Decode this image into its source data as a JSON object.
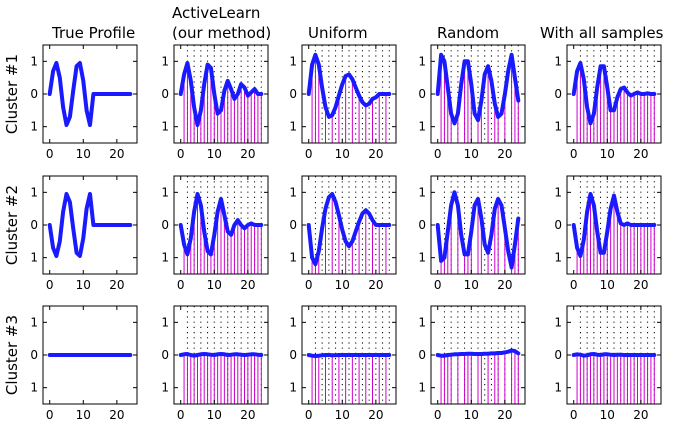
{
  "colors": {
    "curve": "#1a1aff",
    "stem": "#cc00cc",
    "dotted_grid": "#000000",
    "background": "#ffffff"
  },
  "column_titles": [
    [
      "True Profile"
    ],
    [
      "ActiveLearn",
      "(our method)"
    ],
    [
      "Uniform"
    ],
    [
      "Random"
    ],
    [
      "With all samples"
    ]
  ],
  "row_titles": [
    "Cluster #1",
    "Cluster #2",
    "Cluster #3"
  ],
  "chart_data": {
    "type": "line",
    "layout": "grid 3 rows x 5 columns",
    "xlim": [
      -2,
      26
    ],
    "ylim": [
      -1.5,
      1.5
    ],
    "xticks": [
      0,
      10,
      20
    ],
    "yticks": [
      1,
      0,
      -1
    ],
    "ytick_labels": [
      "1",
      "0",
      "1"
    ],
    "stem_style": "vertical lines from the bottom of the axes to each sampled value",
    "panels": [
      {
        "row": 0,
        "col": 0,
        "name": "Cluster #1 - True Profile",
        "x": [
          0,
          1,
          2,
          3,
          4,
          5,
          6,
          7,
          8,
          9,
          10,
          11,
          12,
          13,
          14,
          15,
          16,
          17,
          18,
          19,
          20,
          21,
          22,
          23,
          24
        ],
        "y": [
          0,
          0.7,
          0.95,
          0.5,
          -0.4,
          -0.95,
          -0.7,
          0.1,
          0.85,
          0.95,
          0.4,
          -0.5,
          -0.95,
          0,
          0,
          0,
          0,
          0,
          0,
          0,
          0,
          0,
          0,
          0,
          0
        ],
        "samples_x": [],
        "grid_x": []
      },
      {
        "row": 0,
        "col": 1,
        "name": "Cluster #1 - ActiveLearn (our method)",
        "x": [
          0,
          1,
          2,
          3,
          4,
          5,
          6,
          7,
          8,
          9,
          10,
          11,
          12,
          13,
          14,
          15,
          16,
          17,
          18,
          19,
          20,
          21,
          22,
          23,
          24
        ],
        "y": [
          0,
          0.6,
          0.95,
          0.4,
          -0.4,
          -0.95,
          -0.5,
          0.3,
          0.9,
          0.8,
          0,
          -0.6,
          -0.5,
          0.1,
          0.4,
          0.15,
          -0.15,
          0,
          0.3,
          0.2,
          -0.05,
          0.05,
          0.15,
          0,
          0
        ],
        "samples_x": [
          1,
          2,
          3,
          4,
          5,
          6,
          7,
          8,
          9,
          10,
          11,
          12,
          13,
          14,
          15,
          16,
          17,
          18,
          19,
          20,
          21,
          22,
          23,
          24
        ],
        "grid_x": [
          2,
          4,
          6,
          8,
          10,
          12,
          14,
          16,
          18,
          20,
          22,
          24
        ]
      },
      {
        "row": 0,
        "col": 2,
        "name": "Cluster #1 - Uniform",
        "x": [
          0,
          1,
          2,
          3,
          4,
          5,
          6,
          7,
          8,
          9,
          10,
          11,
          12,
          13,
          14,
          15,
          16,
          17,
          18,
          19,
          20,
          21,
          22,
          23,
          24
        ],
        "y": [
          0,
          0.9,
          1.2,
          0.9,
          0.2,
          -0.4,
          -0.7,
          -0.65,
          -0.4,
          -0.05,
          0.3,
          0.55,
          0.6,
          0.45,
          0.2,
          -0.05,
          -0.25,
          -0.35,
          -0.3,
          -0.15,
          -0.1,
          0,
          0,
          0,
          0
        ],
        "samples_x": [
          1,
          2,
          3,
          5,
          7,
          9,
          11,
          13,
          15,
          17,
          19,
          21,
          23
        ],
        "grid_x": [
          2,
          4,
          6,
          8,
          10,
          12,
          14,
          16,
          18,
          20,
          22,
          24
        ]
      },
      {
        "row": 0,
        "col": 3,
        "name": "Cluster #1 - Random",
        "x": [
          0,
          1,
          2,
          3,
          4,
          5,
          6,
          7,
          8,
          9,
          10,
          11,
          12,
          13,
          14,
          15,
          16,
          17,
          18,
          19,
          20,
          21,
          22,
          23,
          24
        ],
        "y": [
          0,
          1.2,
          1.0,
          0.2,
          -0.6,
          -0.9,
          -0.6,
          0.3,
          1.0,
          1.0,
          0.3,
          -0.6,
          -0.8,
          -0.2,
          0.6,
          0.85,
          0.4,
          -0.3,
          -0.7,
          -0.6,
          0,
          0.7,
          1.2,
          0.5,
          -0.2
        ],
        "samples_x": [
          1,
          2,
          3,
          4,
          6,
          8,
          9,
          10,
          12,
          13,
          15,
          17,
          18,
          20,
          22,
          23,
          24
        ],
        "grid_x": [
          2,
          4,
          6,
          8,
          10,
          12,
          14,
          16,
          18,
          20,
          22,
          24
        ]
      },
      {
        "row": 0,
        "col": 4,
        "name": "Cluster #1 - With all samples",
        "x": [
          0,
          1,
          2,
          3,
          4,
          5,
          6,
          7,
          8,
          9,
          10,
          11,
          12,
          13,
          14,
          15,
          16,
          17,
          18,
          19,
          20,
          21,
          22,
          23,
          24
        ],
        "y": [
          0,
          0.7,
          0.95,
          0.45,
          -0.4,
          -0.9,
          -0.6,
          0.2,
          0.85,
          0.85,
          0.2,
          -0.5,
          -0.5,
          -0.1,
          0.15,
          0.2,
          0.05,
          -0.05,
          0,
          0.05,
          0,
          0,
          0.02,
          0,
          0
        ],
        "samples_x": [
          1,
          2,
          3,
          4,
          5,
          6,
          7,
          8,
          9,
          10,
          11,
          12,
          13,
          14,
          15,
          16,
          17,
          18,
          19,
          20,
          21,
          22,
          23,
          24
        ],
        "grid_x": [
          2,
          4,
          6,
          8,
          10,
          12,
          14,
          16,
          18,
          20,
          22,
          24
        ]
      },
      {
        "row": 1,
        "col": 0,
        "name": "Cluster #2 - True Profile",
        "x": [
          0,
          1,
          2,
          3,
          4,
          5,
          6,
          7,
          8,
          9,
          10,
          11,
          12,
          13,
          14,
          15,
          16,
          17,
          18,
          19,
          20,
          21,
          22,
          23,
          24
        ],
        "y": [
          0,
          -0.7,
          -0.95,
          -0.5,
          0.4,
          0.95,
          0.7,
          -0.1,
          -0.85,
          -0.95,
          -0.4,
          0.5,
          0.95,
          0,
          0,
          0,
          0,
          0,
          0,
          0,
          0,
          0,
          0,
          0,
          0
        ],
        "samples_x": [],
        "grid_x": []
      },
      {
        "row": 1,
        "col": 1,
        "name": "Cluster #2 - ActiveLearn (our method)",
        "x": [
          0,
          1,
          2,
          3,
          4,
          5,
          6,
          7,
          8,
          9,
          10,
          11,
          12,
          13,
          14,
          15,
          16,
          17,
          18,
          19,
          20,
          21,
          22,
          23,
          24
        ],
        "y": [
          0,
          -0.6,
          -0.9,
          -0.4,
          0.4,
          0.95,
          0.6,
          -0.2,
          -0.8,
          -0.9,
          -0.3,
          0.4,
          0.8,
          0.3,
          -0.2,
          -0.3,
          0,
          0.15,
          0,
          -0.1,
          0,
          0.05,
          0,
          0,
          0
        ],
        "samples_x": [
          1,
          2,
          3,
          4,
          5,
          6,
          7,
          8,
          9,
          10,
          11,
          12,
          13,
          14,
          15,
          16,
          17,
          18,
          19,
          20,
          21,
          22,
          23,
          24
        ],
        "grid_x": [
          2,
          4,
          6,
          8,
          10,
          12,
          14,
          16,
          18,
          20,
          22,
          24
        ]
      },
      {
        "row": 1,
        "col": 2,
        "name": "Cluster #2 - Uniform",
        "x": [
          0,
          1,
          2,
          3,
          4,
          5,
          6,
          7,
          8,
          9,
          10,
          11,
          12,
          13,
          14,
          15,
          16,
          17,
          18,
          19,
          20,
          21,
          22,
          23,
          24
        ],
        "y": [
          0,
          -1.0,
          -1.2,
          -0.8,
          -0.1,
          0.5,
          0.85,
          0.95,
          0.7,
          0.3,
          -0.15,
          -0.5,
          -0.65,
          -0.5,
          -0.2,
          0.1,
          0.35,
          0.45,
          0.35,
          0.15,
          0,
          0,
          0,
          0,
          0
        ],
        "samples_x": [
          1,
          2,
          3,
          5,
          7,
          9,
          11,
          13,
          15,
          17,
          19,
          21,
          23
        ],
        "grid_x": [
          2,
          4,
          6,
          8,
          10,
          12,
          14,
          16,
          18,
          20,
          22,
          24
        ]
      },
      {
        "row": 1,
        "col": 3,
        "name": "Cluster #2 - Random",
        "x": [
          0,
          1,
          2,
          3,
          4,
          5,
          6,
          7,
          8,
          9,
          10,
          11,
          12,
          13,
          14,
          15,
          16,
          17,
          18,
          19,
          20,
          21,
          22,
          23,
          24
        ],
        "y": [
          0,
          -1.1,
          -1.0,
          -0.2,
          0.6,
          1.0,
          0.6,
          -0.3,
          -0.9,
          -0.9,
          -0.2,
          0.6,
          0.8,
          0.2,
          -0.6,
          -0.85,
          -0.3,
          0.5,
          0.8,
          0.6,
          -0.1,
          -0.8,
          -1.3,
          -0.6,
          0.2
        ],
        "samples_x": [
          1,
          2,
          3,
          4,
          6,
          8,
          9,
          10,
          12,
          13,
          15,
          17,
          18,
          20,
          22,
          23,
          24
        ],
        "grid_x": [
          2,
          4,
          6,
          8,
          10,
          12,
          14,
          16,
          18,
          20,
          22,
          24
        ]
      },
      {
        "row": 1,
        "col": 4,
        "name": "Cluster #2 - With all samples",
        "x": [
          0,
          1,
          2,
          3,
          4,
          5,
          6,
          7,
          8,
          9,
          10,
          11,
          12,
          13,
          14,
          15,
          16,
          17,
          18,
          19,
          20,
          21,
          22,
          23,
          24
        ],
        "y": [
          0,
          -0.7,
          -0.95,
          -0.45,
          0.4,
          0.95,
          0.6,
          -0.2,
          -0.85,
          -0.85,
          -0.2,
          0.5,
          0.9,
          0.4,
          0.05,
          0,
          0.05,
          0,
          0,
          0,
          0,
          0,
          0,
          0,
          0
        ],
        "samples_x": [
          1,
          2,
          3,
          4,
          5,
          6,
          7,
          8,
          9,
          10,
          11,
          12,
          13,
          14,
          15,
          16,
          17,
          18,
          19,
          20,
          21,
          22,
          23,
          24
        ],
        "grid_x": [
          2,
          4,
          6,
          8,
          10,
          12,
          14,
          16,
          18,
          20,
          22,
          24
        ]
      },
      {
        "row": 2,
        "col": 0,
        "name": "Cluster #3 - True Profile",
        "x": [
          0,
          1,
          2,
          3,
          4,
          5,
          6,
          7,
          8,
          9,
          10,
          11,
          12,
          13,
          14,
          15,
          16,
          17,
          18,
          19,
          20,
          21,
          22,
          23,
          24
        ],
        "y": [
          0,
          0,
          0,
          0,
          0,
          0,
          0,
          0,
          0,
          0,
          0,
          0,
          0,
          0,
          0,
          0,
          0,
          0,
          0,
          0,
          0,
          0,
          0,
          0,
          0
        ],
        "samples_x": [],
        "grid_x": []
      },
      {
        "row": 2,
        "col": 1,
        "name": "Cluster #3 - ActiveLearn (our method)",
        "x": [
          0,
          1,
          2,
          3,
          4,
          5,
          6,
          7,
          8,
          9,
          10,
          11,
          12,
          13,
          14,
          15,
          16,
          17,
          18,
          19,
          20,
          21,
          22,
          23,
          24
        ],
        "y": [
          0,
          0.02,
          0.03,
          0,
          -0.02,
          0,
          0.02,
          0.03,
          0.02,
          0.01,
          0,
          0.02,
          0.03,
          0.02,
          0,
          0.01,
          0.02,
          0.02,
          0.01,
          0,
          0.01,
          0.02,
          0.02,
          0.01,
          0
        ],
        "samples_x": [
          1,
          2,
          3,
          4,
          5,
          6,
          7,
          8,
          9,
          10,
          11,
          12,
          13,
          14,
          15,
          16,
          17,
          18,
          19,
          20,
          21,
          22,
          23,
          24
        ],
        "grid_x": [
          2,
          4,
          6,
          8,
          10,
          12,
          14,
          16,
          18,
          20,
          22,
          24
        ]
      },
      {
        "row": 2,
        "col": 2,
        "name": "Cluster #3 - Uniform",
        "x": [
          0,
          1,
          2,
          3,
          4,
          5,
          6,
          7,
          8,
          9,
          10,
          11,
          12,
          13,
          14,
          15,
          16,
          17,
          18,
          19,
          20,
          21,
          22,
          23,
          24
        ],
        "y": [
          0,
          -0.02,
          -0.03,
          -0.02,
          -0.01,
          0,
          0,
          -0.01,
          -0.01,
          0,
          0,
          0,
          0,
          0,
          0,
          0,
          0,
          0,
          0,
          0,
          0,
          0,
          0,
          0,
          0
        ],
        "samples_x": [
          1,
          2,
          3,
          5,
          7,
          9,
          11,
          13,
          15,
          17,
          19,
          21,
          23
        ],
        "grid_x": [
          2,
          4,
          6,
          8,
          10,
          12,
          14,
          16,
          18,
          20,
          22,
          24
        ]
      },
      {
        "row": 2,
        "col": 3,
        "name": "Cluster #3 - Random",
        "x": [
          0,
          1,
          2,
          3,
          4,
          5,
          6,
          7,
          8,
          9,
          10,
          11,
          12,
          13,
          14,
          15,
          16,
          17,
          18,
          19,
          20,
          21,
          22,
          23,
          24
        ],
        "y": [
          0,
          -0.02,
          -0.02,
          0,
          0.01,
          0.02,
          0.02,
          0.03,
          0.03,
          0.04,
          0.04,
          0.03,
          0.03,
          0.03,
          0.04,
          0.04,
          0.05,
          0.05,
          0.06,
          0.06,
          0.08,
          0.1,
          0.14,
          0.12,
          0.05
        ],
        "samples_x": [
          1,
          2,
          3,
          4,
          6,
          8,
          9,
          10,
          12,
          13,
          15,
          17,
          18,
          20,
          22,
          23,
          24
        ],
        "grid_x": [
          2,
          4,
          6,
          8,
          10,
          12,
          14,
          16,
          18,
          20,
          22,
          24
        ]
      },
      {
        "row": 2,
        "col": 4,
        "name": "Cluster #3 - With all samples",
        "x": [
          0,
          1,
          2,
          3,
          4,
          5,
          6,
          7,
          8,
          9,
          10,
          11,
          12,
          13,
          14,
          15,
          16,
          17,
          18,
          19,
          20,
          21,
          22,
          23,
          24
        ],
        "y": [
          0,
          0.02,
          0.01,
          -0.02,
          -0.01,
          0.02,
          0.03,
          0.01,
          0,
          0.02,
          0.02,
          0.01,
          0,
          0.01,
          0.01,
          0,
          0,
          0,
          0,
          0,
          0,
          0,
          0,
          0,
          0
        ],
        "samples_x": [
          1,
          2,
          3,
          4,
          5,
          6,
          7,
          8,
          9,
          10,
          11,
          12,
          13,
          14,
          15,
          16,
          17,
          18,
          19,
          20,
          21,
          22,
          23,
          24
        ],
        "grid_x": [
          2,
          4,
          6,
          8,
          10,
          12,
          14,
          16,
          18,
          20,
          22,
          24
        ]
      }
    ]
  }
}
